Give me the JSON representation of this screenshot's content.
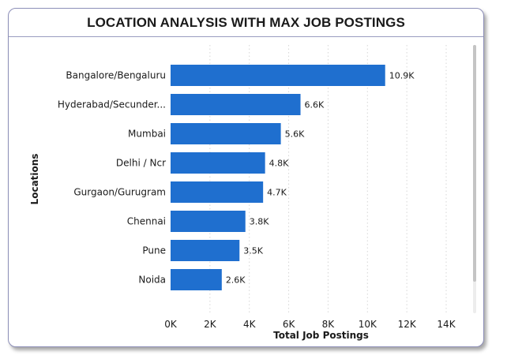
{
  "chart_data": {
    "type": "bar",
    "orientation": "horizontal",
    "title": "LOCATION ANALYSIS WITH MAX JOB POSTINGS",
    "xlabel": "Total Job Postings",
    "ylabel": "Locations",
    "categories": [
      "Bangalore/Bengaluru",
      "Hyderabad/Secunder...",
      "Mumbai",
      "Delhi / Ncr",
      "Gurgaon/Gurugram",
      "Chennai",
      "Pune",
      "Noida"
    ],
    "values": [
      10900,
      6600,
      5600,
      4800,
      4700,
      3800,
      3500,
      2600
    ],
    "data_labels": [
      "10.9K",
      "6.6K",
      "5.6K",
      "4.8K",
      "4.7K",
      "3.8K",
      "3.5K",
      "2.6K"
    ],
    "xlim": [
      0,
      14000
    ],
    "xticks": [
      0,
      2000,
      4000,
      6000,
      8000,
      10000,
      12000,
      14000
    ],
    "xtick_labels": [
      "0K",
      "2K",
      "4K",
      "6K",
      "8K",
      "10K",
      "12K",
      "14K"
    ],
    "grid": "vertical dotted",
    "legend": "none",
    "bar_color": "#1f6fcf"
  }
}
